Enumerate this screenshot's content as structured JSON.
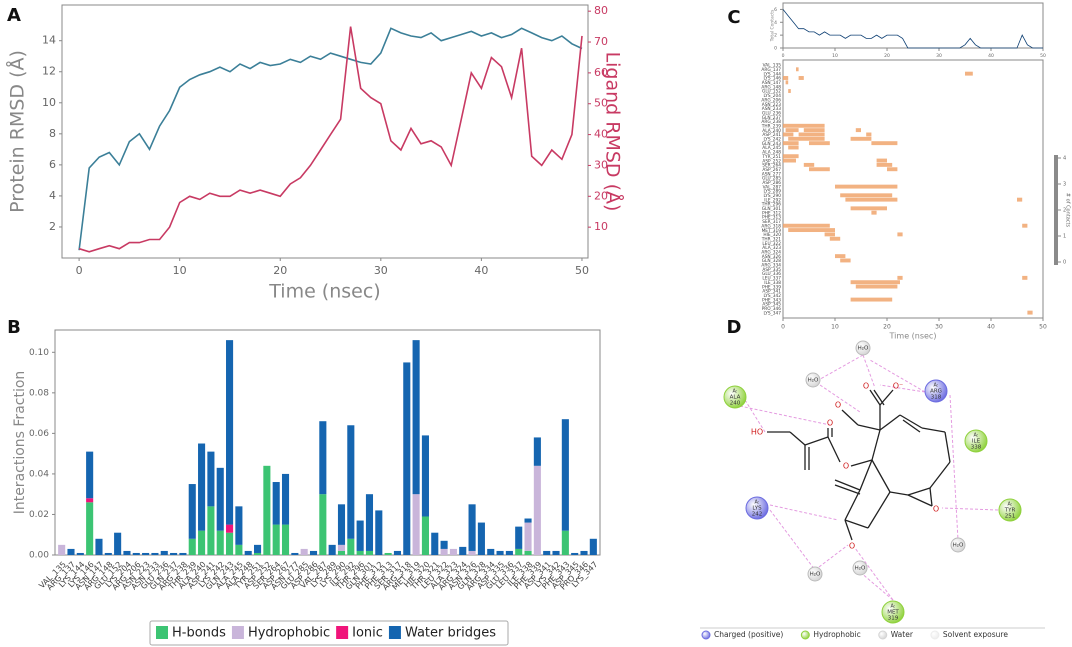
{
  "panels": [
    "A",
    "B",
    "C",
    "D"
  ],
  "chart_data": [
    {
      "type": "line",
      "xlabel": "Time (nsec)",
      "ylabel": "Protein RMSD (Å)",
      "y2label": "Ligand RMSD (Å)",
      "x": [
        0,
        1,
        2,
        3,
        4,
        5,
        6,
        7,
        8,
        9,
        10,
        11,
        12,
        13,
        14,
        15,
        16,
        17,
        18,
        19,
        20,
        21,
        22,
        23,
        24,
        25,
        26,
        27,
        28,
        29,
        30,
        31,
        32,
        33,
        34,
        35,
        36,
        37,
        38,
        39,
        40,
        41,
        42,
        43,
        44,
        45,
        46,
        47,
        48,
        49,
        50
      ],
      "xlim": [
        -1.7,
        50.6
      ],
      "xticks": [
        0,
        10,
        20,
        30,
        40,
        50
      ],
      "ylim": [
        0,
        16.3
      ],
      "yticks": [
        2,
        4,
        6,
        8,
        10,
        12,
        14
      ],
      "y2lim": [
        0,
        82
      ],
      "y2ticks": [
        10,
        20,
        30,
        40,
        50,
        60,
        70,
        80
      ],
      "series": [
        {
          "color": "#3b7f98",
          "values": [
            0.5,
            5.8,
            6.5,
            6.8,
            6.0,
            7.5,
            8.0,
            7.0,
            8.5,
            9.5,
            11.0,
            11.5,
            11.8,
            12.0,
            12.3,
            12.0,
            12.5,
            12.2,
            12.6,
            12.4,
            12.5,
            12.8,
            12.6,
            13.0,
            12.8,
            13.2,
            13.0,
            12.8,
            12.6,
            12.5,
            13.2,
            14.8,
            14.5,
            14.3,
            14.2,
            14.5,
            14.0,
            14.2,
            14.4,
            14.6,
            14.3,
            14.5,
            14.2,
            14.4,
            14.8,
            14.5,
            14.2,
            14.0,
            14.3,
            13.8,
            13.5
          ]
        },
        {
          "color": "#c83a63",
          "axis": "y2",
          "values": [
            3,
            2,
            3,
            4,
            3,
            5,
            5,
            6,
            6,
            10,
            18,
            20,
            19,
            21,
            20,
            20,
            22,
            21,
            22,
            21,
            20,
            24,
            26,
            30,
            35,
            40,
            45,
            75,
            55,
            52,
            50,
            38,
            35,
            42,
            37,
            38,
            36,
            30,
            45,
            60,
            55,
            65,
            62,
            52,
            68,
            33,
            30,
            35,
            32,
            40,
            72
          ]
        }
      ]
    },
    {
      "type": "bar",
      "stacked": true,
      "ylabel": "Interactions Fraction",
      "legend": "bottom",
      "categories": [
        "VAL_135",
        "ARG_137",
        "LYS_144",
        "LYS_146",
        "ASN_147",
        "ARG_148",
        "GLU_152",
        "LYS_204",
        "ARG_206",
        "ASN_223",
        "ASN_233",
        "GLU_236",
        "GLN_237",
        "ARG_238",
        "THR_239",
        "ALA_240",
        "ASP_241",
        "LYS_242",
        "GLN_243",
        "ALA_245",
        "ALA_248",
        "TYR_251",
        "ASP_252",
        "SER_264",
        "ASP_267",
        "ASN_277",
        "GLU_285",
        "ASP_286",
        "VAL_287",
        "LYS_289",
        "LYS_290",
        "ILE_292",
        "THR_296",
        "GLN_301",
        "PHE_312",
        "PHE_313",
        "SER_317",
        "ARG_318",
        "MET_319",
        "HIE_320",
        "THR_321",
        "LEU_322",
        "ALA_323",
        "ARG_324",
        "ASN_326",
        "GLN_328",
        "ARG_334",
        "ASP_335",
        "GLU_336",
        "LEU_337",
        "ILE_338",
        "PHE_339",
        "ASP_341",
        "LYS_342",
        "PHE_343",
        "ASP_345",
        "PRO_346",
        "LYS_347"
      ],
      "ylim": [
        0,
        0.111
      ],
      "yticks": [
        {
          "value": 0,
          "label": "0.00"
        },
        {
          "value": 0.02,
          "label": "0.02"
        },
        {
          "value": 0.04,
          "label": "0.04"
        },
        {
          "value": 0.06,
          "label": "0.06"
        },
        {
          "value": 0.08,
          "label": "0.08"
        },
        {
          "value": 0.1,
          "label": "0.10"
        }
      ],
      "series": [
        {
          "name": "H-bonds",
          "color": "#3cc473",
          "values": [
            0,
            0,
            0,
            0.026,
            0,
            0,
            0,
            0,
            0,
            0,
            0,
            0,
            0,
            0,
            0.008,
            0.012,
            0.024,
            0.012,
            0.011,
            0.005,
            0,
            0.001,
            0.044,
            0.015,
            0.015,
            0,
            0,
            0,
            0.03,
            0,
            0.002,
            0.008,
            0.002,
            0.002,
            0,
            0.001,
            0,
            0,
            0,
            0.019,
            0,
            0,
            0,
            0,
            0,
            0,
            0,
            0,
            0,
            0.003,
            0.002,
            0,
            0,
            0,
            0.012,
            0,
            0,
            0
          ]
        },
        {
          "name": "Hydrophobic",
          "color": "#c9b5da",
          "values": [
            0.005,
            0,
            0,
            0,
            0,
            0,
            0,
            0,
            0,
            0,
            0,
            0,
            0,
            0,
            0,
            0,
            0,
            0,
            0,
            0,
            0,
            0,
            0,
            0,
            0,
            0,
            0.003,
            0,
            0,
            0,
            0.003,
            0,
            0,
            0,
            0,
            0,
            0,
            0,
            0.03,
            0,
            0,
            0.003,
            0.003,
            0,
            0.002,
            0,
            0,
            0,
            0,
            0,
            0.014,
            0.044,
            0,
            0,
            0,
            0,
            0,
            0
          ]
        },
        {
          "name": "Ionic",
          "color": "#f0147a",
          "values": [
            0,
            0,
            0,
            0.002,
            0,
            0,
            0,
            0,
            0,
            0,
            0,
            0,
            0,
            0,
            0,
            0,
            0,
            0,
            0.004,
            0,
            0,
            0,
            0,
            0,
            0,
            0,
            0,
            0,
            0,
            0,
            0,
            0,
            0,
            0,
            0,
            0,
            0,
            0,
            0,
            0,
            0,
            0,
            0,
            0,
            0,
            0,
            0,
            0,
            0,
            0,
            0,
            0,
            0,
            0,
            0,
            0,
            0,
            0
          ]
        },
        {
          "name": "Water bridges",
          "color": "#1565b0",
          "values": [
            0,
            0.003,
            0.001,
            0.023,
            0.008,
            0.001,
            0.011,
            0.002,
            0.001,
            0.001,
            0.001,
            0.002,
            0.001,
            0.001,
            0.027,
            0.043,
            0.027,
            0.031,
            0.091,
            0.019,
            0.002,
            0.004,
            0,
            0.021,
            0.025,
            0.001,
            0,
            0.002,
            0.036,
            0.005,
            0.02,
            0.056,
            0.015,
            0.028,
            0.022,
            0,
            0.002,
            0.095,
            0.076,
            0.04,
            0.011,
            0.004,
            0,
            0.004,
            0.023,
            0.016,
            0.003,
            0.002,
            0.002,
            0.011,
            0.002,
            0.014,
            0.002,
            0.002,
            0.055,
            0.001,
            0.002,
            0.008
          ]
        }
      ]
    },
    {
      "type": "timeline",
      "xlabel": "Time (nsec)",
      "xlim": [
        0,
        50
      ],
      "xticks": [
        0,
        10,
        20,
        30,
        40,
        50
      ],
      "color": "#f0a46c",
      "colorbar_label": "# of Contacts",
      "colorbar_ticks": [
        0,
        1,
        2,
        3,
        4
      ],
      "intervals": [
        [],
        [
          [
            2.5,
            3
          ]
        ],
        [
          [
            35,
            36.5
          ]
        ],
        [
          [
            0,
            1
          ],
          [
            3,
            4
          ]
        ],
        [
          [
            0.5,
            1
          ]
        ],
        [],
        [
          [
            1,
            1.5
          ]
        ],
        [],
        [],
        [],
        [],
        [],
        [],
        [],
        [
          [
            0,
            8
          ]
        ],
        [
          [
            0.5,
            3
          ],
          [
            4,
            8
          ],
          [
            14,
            15
          ]
        ],
        [
          [
            0,
            2
          ],
          [
            3,
            8
          ],
          [
            16,
            17
          ]
        ],
        [
          [
            1,
            8
          ],
          [
            13,
            17
          ]
        ],
        [
          [
            0,
            3
          ],
          [
            5,
            9
          ],
          [
            17,
            22
          ]
        ],
        [
          [
            1,
            3
          ]
        ],
        [],
        [
          [
            0,
            3
          ]
        ],
        [
          [
            0,
            2.5
          ],
          [
            18,
            20
          ]
        ],
        [
          [
            4,
            6
          ],
          [
            18,
            21
          ]
        ],
        [
          [
            5,
            9
          ],
          [
            20,
            22
          ]
        ],
        [],
        [],
        [],
        [
          [
            10,
            22
          ]
        ],
        [],
        [
          [
            11,
            21
          ]
        ],
        [
          [
            12,
            22
          ],
          [
            45,
            46
          ]
        ],
        [],
        [
          [
            13,
            20
          ]
        ],
        [
          [
            17,
            18
          ]
        ],
        [],
        [],
        [
          [
            0,
            9
          ],
          [
            46,
            47
          ]
        ],
        [
          [
            1,
            10
          ]
        ],
        [
          [
            8,
            10
          ],
          [
            22,
            23
          ]
        ],
        [
          [
            9,
            11
          ]
        ],
        [],
        [],
        [],
        [
          [
            10,
            12
          ]
        ],
        [
          [
            11,
            13
          ]
        ],
        [],
        [],
        [],
        [
          [
            22,
            23
          ],
          [
            46,
            47
          ]
        ],
        [
          [
            13,
            22.5
          ]
        ],
        [
          [
            14,
            22
          ]
        ],
        [],
        [],
        [
          [
            13,
            21
          ]
        ],
        [],
        [],
        [
          [
            47,
            48
          ]
        ]
      ]
    },
    {
      "type": "line",
      "ylabel": "Total Contacts",
      "x": [
        0,
        1,
        2,
        3,
        4,
        5,
        6,
        7,
        8,
        9,
        10,
        11,
        12,
        13,
        14,
        15,
        16,
        17,
        18,
        19,
        20,
        21,
        22,
        23,
        24,
        25,
        26,
        27,
        28,
        29,
        30,
        31,
        32,
        33,
        34,
        35,
        36,
        37,
        38,
        39,
        40,
        41,
        42,
        43,
        44,
        45,
        46,
        47,
        48,
        49,
        50
      ],
      "xlim": [
        0,
        50
      ],
      "xticks": [
        0,
        10,
        20,
        30,
        40,
        50
      ],
      "ylim": [
        0,
        7
      ],
      "yticks": [
        0,
        2,
        4,
        6
      ],
      "series": [
        {
          "color": "#0d3f73",
          "values": [
            6,
            5,
            4,
            3,
            3,
            2.5,
            2.5,
            2,
            2.5,
            2,
            2,
            2,
            1.5,
            2,
            2,
            2,
            1.5,
            1.5,
            2,
            1.5,
            2,
            2,
            2,
            1.5,
            0,
            0,
            0,
            0,
            0,
            0,
            0,
            0,
            0,
            0,
            0,
            0.5,
            1.5,
            0.5,
            0,
            0,
            0,
            0,
            0,
            0,
            0,
            0,
            2,
            0.5,
            0,
            0,
            0
          ]
        }
      ]
    }
  ],
  "diagram": {
    "residues": [
      {
        "chain": "A:",
        "residue": "ALA",
        "number": 240,
        "kind": "hydrophobic"
      },
      {
        "chain": "A:",
        "residue": "ARG",
        "number": 318,
        "kind": "charged"
      },
      {
        "chain": "A:",
        "residue": "ILE",
        "number": 338,
        "kind": "hydrophobic"
      },
      {
        "chain": "A:",
        "residue": "LYS",
        "number": 242,
        "kind": "charged"
      },
      {
        "chain": "A:",
        "residue": "TYR",
        "number": 251,
        "kind": "hydrophobic"
      },
      {
        "chain": "A:",
        "residue": "MET",
        "number": 319,
        "kind": "hydrophobic"
      }
    ],
    "waters": [
      "H₂O",
      "H₂O",
      "H₂O",
      "H₂O",
      "H₂O"
    ],
    "atoms": [
      "HO",
      "O",
      "O",
      "O",
      "O⁻",
      "O",
      "O",
      "O"
    ],
    "legend": [
      {
        "label": "Charged (positive)",
        "kind": "charged"
      },
      {
        "label": "Hydrophobic",
        "kind": "hydrophobic"
      },
      {
        "label": "Water",
        "kind": "water"
      },
      {
        "label": "Solvent exposure",
        "kind": "solvent"
      }
    ],
    "colors": {
      "charged": "#6c6ce0",
      "hydrophobic": "#8fd13c",
      "water": "#d4d4d4",
      "solvent": "#ececec"
    }
  }
}
